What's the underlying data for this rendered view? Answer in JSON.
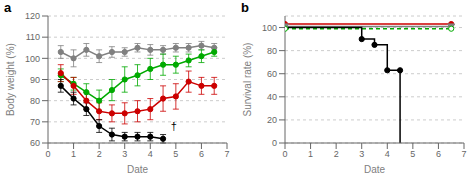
{
  "chart_data": [
    {
      "type": "line",
      "title": "a",
      "x_label": "Date",
      "y_label": "Body weight (%)",
      "xlim": [
        0,
        7
      ],
      "ylim": [
        60,
        120
      ],
      "xticks": [
        0,
        1,
        2,
        3,
        4,
        5,
        6,
        7
      ],
      "yticks": [
        60,
        70,
        80,
        90,
        100,
        110,
        120
      ],
      "grid": true,
      "series": [
        {
          "color": "#808080",
          "marker": "circle",
          "line_style": "solid",
          "x": [
            0.5,
            1.0,
            1.5,
            2.0,
            2.5,
            3.0,
            3.5,
            4.0,
            4.5,
            5.0,
            5.5,
            6.0,
            6.5
          ],
          "values": [
            103,
            100,
            104,
            101,
            103,
            103,
            105,
            104,
            104,
            105,
            105,
            106,
            105
          ],
          "yerr": [
            3,
            4,
            3,
            3,
            2.5,
            2,
            2,
            2.5,
            2,
            2,
            2,
            2,
            2
          ]
        },
        {
          "color": "#00aa00",
          "marker": "circle",
          "line_style": "solid",
          "x": [
            0.5,
            1.0,
            1.5,
            2.0,
            2.5,
            3.0,
            3.5,
            4.0,
            4.5,
            5.0,
            5.5,
            6.0,
            6.5
          ],
          "values": [
            92,
            88,
            84,
            80,
            85,
            90,
            92,
            95,
            97,
            97,
            99,
            101,
            103
          ],
          "yerr": [
            3,
            3,
            4,
            5,
            5,
            6,
            5,
            5,
            5,
            4,
            3,
            3,
            2
          ]
        },
        {
          "color": "#cc0000",
          "marker": "circle",
          "line_style": "solid",
          "x": [
            0.5,
            1.0,
            1.5,
            2.0,
            2.5,
            3.0,
            3.5,
            4.0,
            4.5,
            5.0,
            5.5,
            6.0,
            6.5
          ],
          "values": [
            93,
            87,
            80,
            75,
            74,
            74,
            75,
            76,
            81,
            82,
            89,
            87,
            87
          ],
          "yerr": [
            4,
            4,
            4,
            4,
            4,
            5,
            5,
            5,
            6,
            6,
            5,
            4,
            4
          ]
        },
        {
          "color": "#000000",
          "marker": "circle",
          "line_style": "solid",
          "x": [
            0.5,
            1.0,
            1.5,
            2.0,
            2.5,
            3.0,
            3.5,
            4.0,
            4.5
          ],
          "values": [
            87,
            81,
            76,
            68,
            64,
            63,
            63,
            63,
            62
          ],
          "yerr": [
            3,
            3,
            3,
            3,
            3,
            2,
            2,
            2,
            2
          ]
        }
      ],
      "annotations": [
        {
          "text": "†",
          "x": 4.8,
          "y": 66
        }
      ]
    },
    {
      "type": "line",
      "title": "b",
      "x_label": "Date",
      "y_label": "Survival rate (%)",
      "xlim": [
        0,
        7
      ],
      "ylim": [
        0,
        110
      ],
      "xticks": [
        0,
        1,
        2,
        3,
        4,
        5,
        6,
        7
      ],
      "yticks": [
        0,
        20,
        40,
        60,
        80,
        100
      ],
      "grid": true,
      "series": [
        {
          "color": "#cc0000",
          "marker": "circle",
          "line_style": "solid",
          "x": [
            0,
            6.5
          ],
          "values": [
            103,
            103
          ]
        },
        {
          "color": "#808080",
          "marker": "triangle_down",
          "line_style": "solid",
          "x": [
            0,
            6.5
          ],
          "values": [
            101,
            101
          ]
        },
        {
          "color": "#00aa00",
          "marker": "open_circle",
          "line_style": "dashed",
          "x": [
            0,
            6.5
          ],
          "values": [
            99,
            99
          ]
        },
        {
          "color": "#000000",
          "marker": "none",
          "line_style": "solid",
          "x": [
            0,
            3.0,
            3.0,
            3.5,
            3.5,
            4.0,
            4.0,
            4.5,
            4.5
          ],
          "values": [
            100,
            100,
            90,
            90,
            85,
            85,
            63,
            63,
            0
          ]
        },
        {
          "color": "#000000",
          "marker": "circle",
          "line_style": "none",
          "x": [
            3.0,
            3.5,
            4.0,
            4.5
          ],
          "values": [
            90,
            85,
            63,
            63
          ]
        }
      ]
    }
  ]
}
